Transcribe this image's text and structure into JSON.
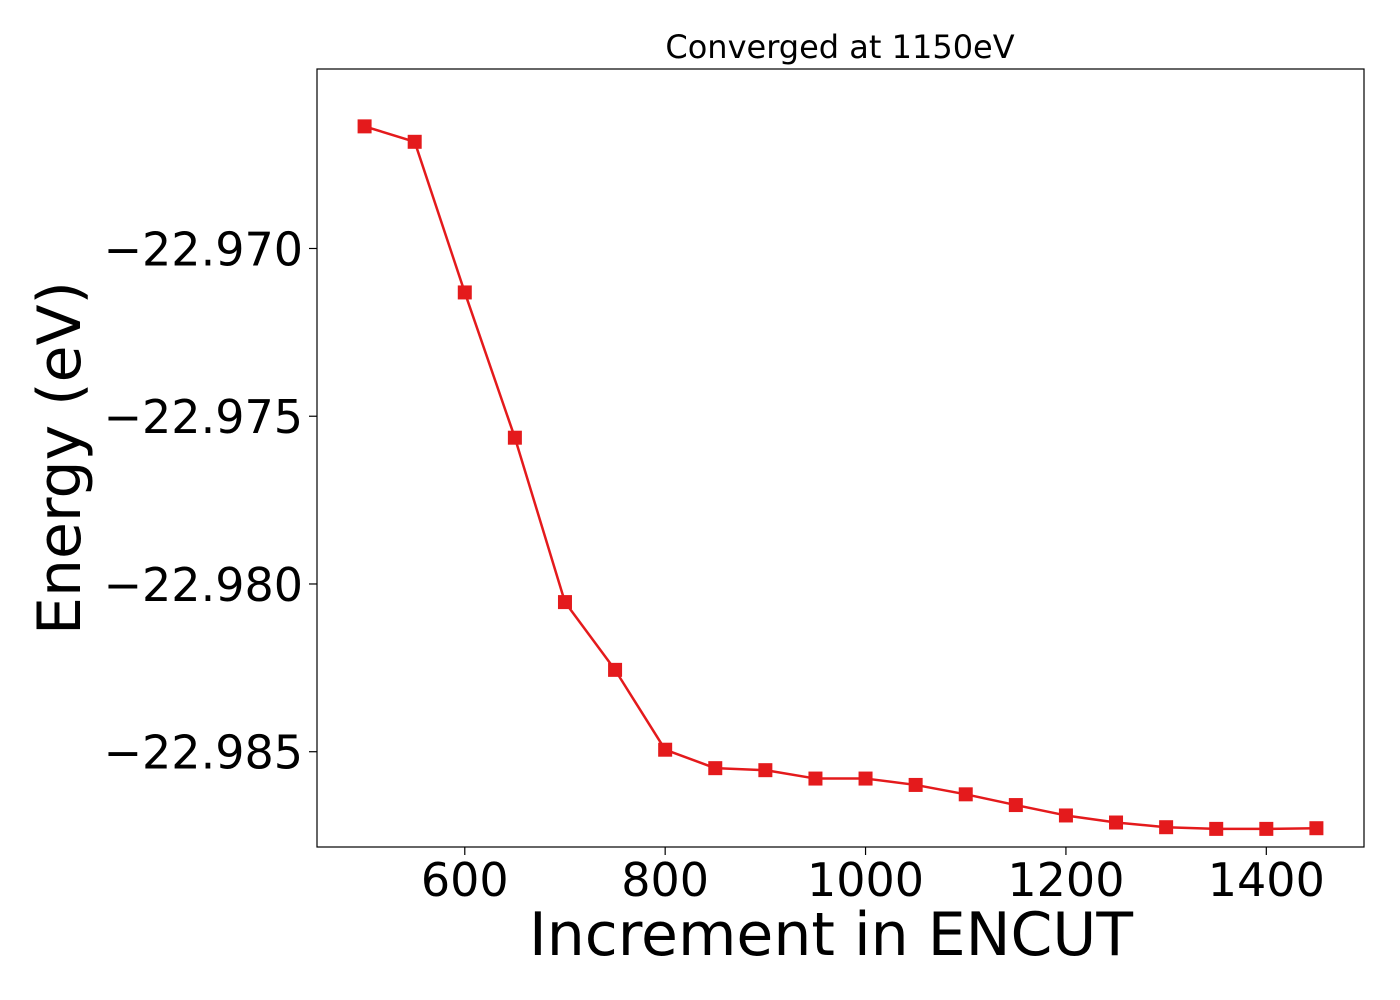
{
  "chart_data": {
    "type": "line",
    "title": "Converged at 1150eV",
    "xlabel": "Increment in ENCUT",
    "ylabel": "Energy (eV)",
    "xlim": [
      452.5,
      1497.5
    ],
    "ylim": [
      -22.98784,
      -22.96465
    ],
    "xticks": [
      600,
      800,
      1000,
      1200,
      1400
    ],
    "xtick_labels": [
      "600",
      "800",
      "1000",
      "1200",
      "1400"
    ],
    "yticks": [
      -22.97,
      -22.975,
      -22.98,
      -22.985
    ],
    "ytick_labels": [
      "−22.970",
      "−22.975",
      "−22.980",
      "−22.985"
    ],
    "grid": false,
    "series": [
      {
        "color": "#e41a1c",
        "marker": "square",
        "x": [
          500,
          550,
          600,
          650,
          700,
          750,
          800,
          850,
          900,
          950,
          1000,
          1050,
          1100,
          1150,
          1200,
          1250,
          1300,
          1350,
          1400,
          1450
        ],
        "y": [
          -22.96636,
          -22.96682,
          -22.97131,
          -22.97564,
          -22.98054,
          -22.98256,
          -22.98494,
          -22.98549,
          -22.98555,
          -22.9858,
          -22.9858,
          -22.98599,
          -22.98627,
          -22.98659,
          -22.9869,
          -22.98711,
          -22.98725,
          -22.9873,
          -22.9873,
          -22.98728
        ]
      }
    ]
  }
}
